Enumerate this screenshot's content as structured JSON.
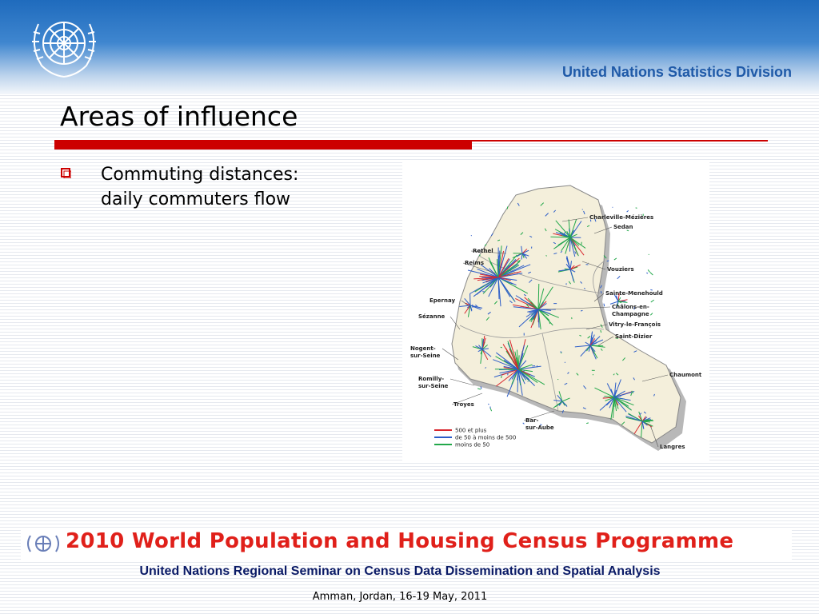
{
  "header": {
    "logo_icon": "un-emblem-icon",
    "division": "United Nations Statistics Division",
    "colors": {
      "bar_top": "#1f6bbd",
      "division_text": "#1f5aa8"
    }
  },
  "slide": {
    "title": "Areas of influence",
    "bullet_icon": "checkbox-bullet-icon",
    "bullet_text": "Commuting distances: daily commuters flow",
    "rule_color": "#cc0000"
  },
  "map": {
    "towns": [
      "Charleville-Mézières",
      "Sedan",
      "Rethel",
      "Reims",
      "Vouziers",
      "Sainte-Menehould",
      "Epernay",
      "Châlons-en-Champagne",
      "Sézanne",
      "Vitry-le-François",
      "Saint-Dizier",
      "Nogent-sur-Seine",
      "Chaumont",
      "Romilly-sur-Seine",
      "Troyes",
      "Bar-sur-Aube",
      "Langres"
    ],
    "legend": [
      {
        "label": "500 et plus",
        "color": "#d8262d"
      },
      {
        "label": "de 50 à moins de 500",
        "color": "#2b5cc8"
      },
      {
        "label": "moins de 50",
        "color": "#22a84a"
      }
    ]
  },
  "footer": {
    "banner": "2010 World Population and Housing Census Programme",
    "banner_color": "#e0201a",
    "seminar": "United Nations Regional Seminar on Census Data Dissemination and Spatial Analysis",
    "venue": "Amman, Jordan, 16-19 May, 2011"
  }
}
